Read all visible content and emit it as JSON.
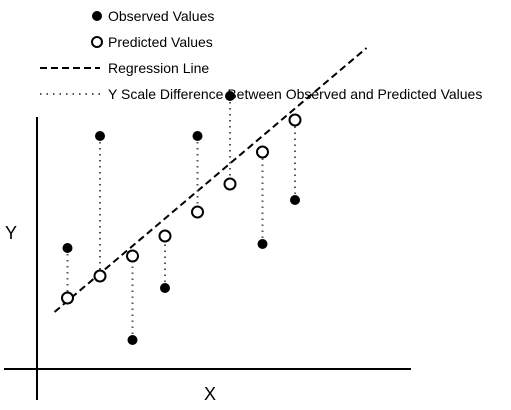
{
  "chart_data": {
    "type": "scatter",
    "title": "",
    "xlabel": "X",
    "ylabel": "Y",
    "grid": false,
    "legend_placement": "top-left",
    "legend": [
      {
        "label": "Observed Values",
        "marker": "filled-circle"
      },
      {
        "label": "Predicted Values",
        "marker": "open-circle"
      },
      {
        "label": "Regression Line",
        "marker": "dashed-line"
      },
      {
        "label": "Y Scale Difference Between Observed and Predicted Values",
        "marker": "dotted-line"
      }
    ],
    "x": [
      1,
      2,
      3,
      4,
      5,
      6,
      7,
      8
    ],
    "series": [
      {
        "name": "Observed Values",
        "values": [
          3.0,
          5.8,
          0.7,
          2.0,
          5.8,
          6.8,
          3.1,
          4.2
        ]
      },
      {
        "name": "Predicted Values",
        "values": [
          1.75,
          2.3,
          2.8,
          3.3,
          3.9,
          4.6,
          5.4,
          6.2
        ]
      },
      {
        "name": "Regression Line",
        "x": [
          0.6,
          10.2
        ],
        "values": [
          1.4,
          8.0
        ]
      }
    ],
    "colors": {
      "marker": "#000000",
      "line": "#000000",
      "difference": "#555555"
    }
  }
}
